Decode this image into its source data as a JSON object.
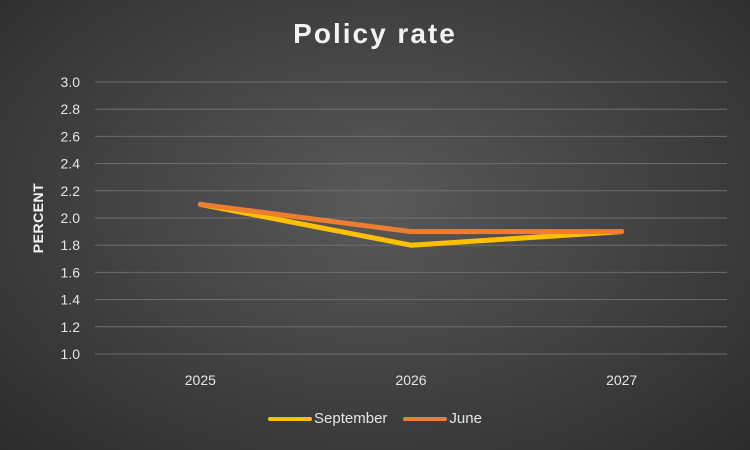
{
  "chart_data": {
    "type": "line",
    "title": "Policy rate",
    "xlabel": "",
    "ylabel": "PERCENT",
    "categories": [
      "2025",
      "2026",
      "2027"
    ],
    "ylim": [
      1.0,
      3.0
    ],
    "yticks": [
      1.0,
      1.2,
      1.4,
      1.6,
      1.8,
      2.0,
      2.2,
      2.4,
      2.6,
      2.8,
      3.0
    ],
    "grid": true,
    "legend_position": "bottom",
    "series": [
      {
        "name": "September",
        "values": [
          2.1,
          1.8,
          1.9
        ],
        "color": "#ffc000"
      },
      {
        "name": "June",
        "values": [
          2.1,
          1.9,
          1.9
        ],
        "color": "#ed7d31"
      }
    ]
  }
}
